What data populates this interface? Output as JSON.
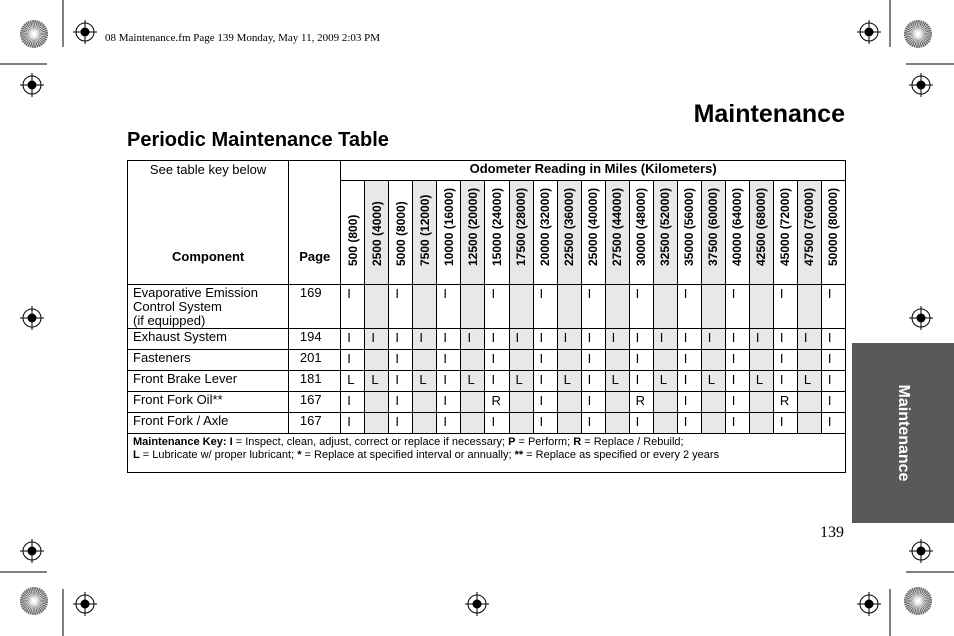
{
  "print_header": "08 Maintenance.fm  Page 139  Monday, May 11, 2009  2:03 PM",
  "title": "Maintenance",
  "subtitle": "Periodic Maintenance Table",
  "side_tab": "Maintenance",
  "page_number": "139",
  "table": {
    "key_note": "See table key below",
    "component_header": "Component",
    "page_header": "Page",
    "odometer_header": "Odometer Reading in Miles (Kilometers)",
    "columns": [
      "500 (800)",
      "2500 (4000)",
      "5000 (8000)",
      "7500 (12000)",
      "10000 (16000)",
      "12500 (20000)",
      "15000 (24000)",
      "17500 (28000)",
      "20000 (32000)",
      "22500 (36000)",
      "25000 (40000)",
      "27500 (44000)",
      "30000 (48000)",
      "32500 (52000)",
      "35000 (56000)",
      "37500 (60000)",
      "40000 (64000)",
      "42500 (68000)",
      "45000 (72000)",
      "47500 (76000)",
      "50000 (80000)"
    ],
    "rows": [
      {
        "component": [
          "Evaporative Emission",
          "Control System",
          "(if equipped)"
        ],
        "page": "169",
        "cells": [
          "I",
          "",
          "I",
          "",
          "I",
          "",
          "I",
          "",
          "I",
          "",
          "I",
          "",
          "I",
          "",
          "I",
          "",
          "I",
          "",
          "I",
          "",
          "I"
        ]
      },
      {
        "component": [
          "Exhaust System"
        ],
        "page": "194",
        "cells": [
          "I",
          "I",
          "I",
          "I",
          "I",
          "I",
          "I",
          "I",
          "I",
          "I",
          "I",
          "I",
          "I",
          "I",
          "I",
          "I",
          "I",
          "I",
          "I",
          "I",
          "I"
        ]
      },
      {
        "component": [
          "Fasteners"
        ],
        "page": "201",
        "cells": [
          "I",
          "",
          "I",
          "",
          "I",
          "",
          "I",
          "",
          "I",
          "",
          "I",
          "",
          "I",
          "",
          "I",
          "",
          "I",
          "",
          "I",
          "",
          "I"
        ]
      },
      {
        "component": [
          "Front Brake Lever"
        ],
        "page": "181",
        "cells": [
          "L",
          "L",
          "I",
          "L",
          "I",
          "L",
          "I",
          "L",
          "I",
          "L",
          "I",
          "L",
          "I",
          "L",
          "I",
          "L",
          "I",
          "L",
          "I",
          "L",
          "I"
        ]
      },
      {
        "component": [
          "Front Fork Oil**"
        ],
        "page": "167",
        "cells": [
          "I",
          "",
          "I",
          "",
          "I",
          "",
          "R",
          "",
          "I",
          "",
          "I",
          "",
          "R",
          "",
          "I",
          "",
          "I",
          "",
          "R",
          "",
          "I"
        ]
      },
      {
        "component": [
          "Front Fork / Axle"
        ],
        "page": "167",
        "cells": [
          "I",
          "",
          "I",
          "",
          "I",
          "",
          "I",
          "",
          "I",
          "",
          "I",
          "",
          "I",
          "",
          "I",
          "",
          "I",
          "",
          "I",
          "",
          "I"
        ]
      }
    ],
    "key": {
      "label": "Maintenance Key:",
      "line1": [
        [
          "I",
          " = Inspect, clean, adjust, correct or replace if necessary; "
        ],
        [
          "P",
          " = Perform; "
        ],
        [
          "R",
          " = Replace / Rebuild;"
        ]
      ],
      "line2": [
        [
          "L",
          " = Lubricate w/ proper lubricant; "
        ],
        [
          "*",
          " = Replace at specified interval or annually; "
        ],
        [
          "**",
          " = Replace as specified or every 2 years"
        ]
      ]
    }
  },
  "colors": {
    "shade": "#e8e8e8",
    "tab": "#58595b"
  }
}
